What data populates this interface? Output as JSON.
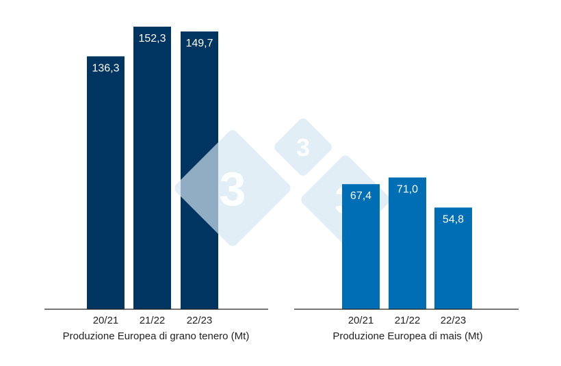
{
  "chart_data": [
    {
      "type": "bar",
      "xlabel": "Produzione Europea di grano tenero (Mt)",
      "categories": [
        "20/21",
        "21/22",
        "22/23"
      ],
      "values": [
        136.3,
        152.3,
        149.7
      ],
      "labels": [
        "136,3",
        "152,3",
        "149,7"
      ],
      "color": "#003562",
      "ylim": [
        0,
        155
      ],
      "grid": false
    },
    {
      "type": "bar",
      "xlabel": "Produzione Europea di mais (Mt)",
      "categories": [
        "20/21",
        "21/22",
        "22/23"
      ],
      "values": [
        67.4,
        71.0,
        54.8
      ],
      "labels": [
        "67,4",
        "71,0",
        "54,8"
      ],
      "color": "#006eb5",
      "ylim": [
        0,
        155
      ],
      "grid": false
    }
  ],
  "watermark": {
    "text": "3",
    "color": "#d5e6f3"
  }
}
